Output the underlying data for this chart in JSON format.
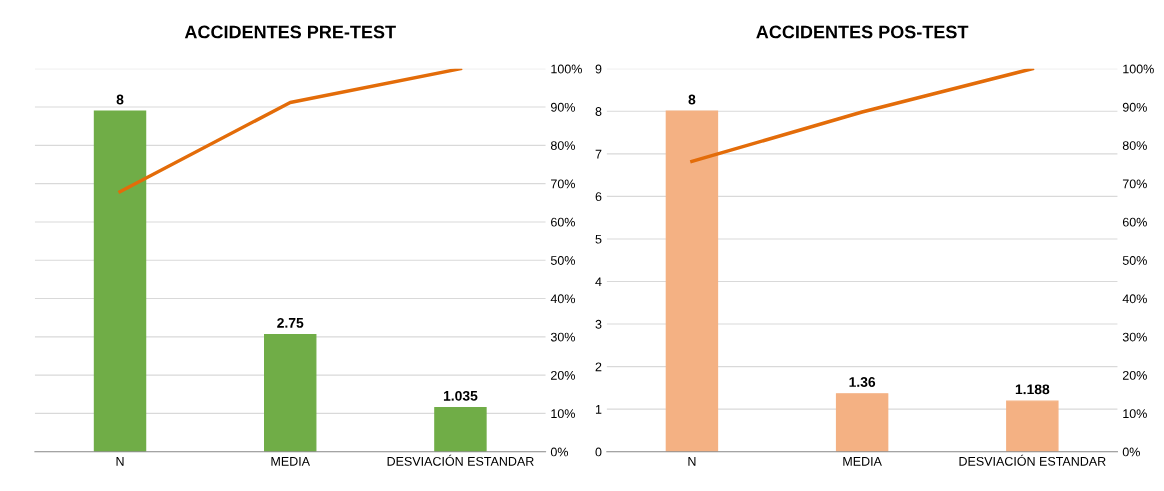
{
  "chart_data": [
    {
      "type": "bar",
      "title": "ACCIDENTES PRE-TEST",
      "categories": [
        "N",
        "MEDIA",
        "DESVIACIÓN ESTANDAR"
      ],
      "series": [
        {
          "color": "#70ad47",
          "values": [
            8,
            2.75,
            1.035
          ],
          "value_labels": [
            "8",
            "2.75",
            "1.035"
          ]
        },
        {
          "type": "line",
          "axis": "y2",
          "color": "#e36c09",
          "values": [
            67.9,
            91.2,
            100
          ]
        }
      ],
      "ylim": [
        0,
        9
      ],
      "y2lim": [
        0,
        100
      ],
      "y2ticks": [
        {
          "value": 0,
          "label": "0%"
        },
        {
          "value": 10,
          "label": "10%"
        },
        {
          "value": 20,
          "label": "20%"
        },
        {
          "value": 30,
          "label": "30%"
        },
        {
          "value": 40,
          "label": "40%"
        },
        {
          "value": 50,
          "label": "50%"
        },
        {
          "value": 60,
          "label": "60%"
        },
        {
          "value": 70,
          "label": "70%"
        },
        {
          "value": 80,
          "label": "80%"
        },
        {
          "value": 90,
          "label": "90%"
        },
        {
          "value": 100,
          "label": "100%"
        }
      ],
      "tick_labels": [
        "x",
        "y2"
      ],
      "grid": "y2",
      "marker": "none",
      "line_style": "solid"
    },
    {
      "type": "bar",
      "title": "ACCIDENTES POS-TEST",
      "categories": [
        "N",
        "MEDIA",
        "DESVIACIÓN ESTANDAR"
      ],
      "series": [
        {
          "color": "#f4b183",
          "values": [
            8,
            1.36,
            1.188
          ],
          "value_labels": [
            "8",
            "1.36",
            "1.188"
          ]
        },
        {
          "type": "line",
          "axis": "y2",
          "color": "#e36c09",
          "values": [
            75.8,
            88.7,
            100
          ]
        }
      ],
      "ylim": [
        0,
        9
      ],
      "yticks": [
        0,
        1,
        2,
        3,
        4,
        5,
        6,
        7,
        8,
        9
      ],
      "y2lim": [
        0,
        100
      ],
      "y2ticks": [
        {
          "value": 0,
          "label": "0%"
        },
        {
          "value": 10,
          "label": "10%"
        },
        {
          "value": 20,
          "label": "20%"
        },
        {
          "value": 30,
          "label": "30%"
        },
        {
          "value": 40,
          "label": "40%"
        },
        {
          "value": 50,
          "label": "50%"
        },
        {
          "value": 60,
          "label": "60%"
        },
        {
          "value": 70,
          "label": "70%"
        },
        {
          "value": 80,
          "label": "80%"
        },
        {
          "value": 90,
          "label": "90%"
        },
        {
          "value": 100,
          "label": "100%"
        }
      ],
      "grid": "y",
      "marker": "none",
      "line_style": "solid"
    }
  ]
}
